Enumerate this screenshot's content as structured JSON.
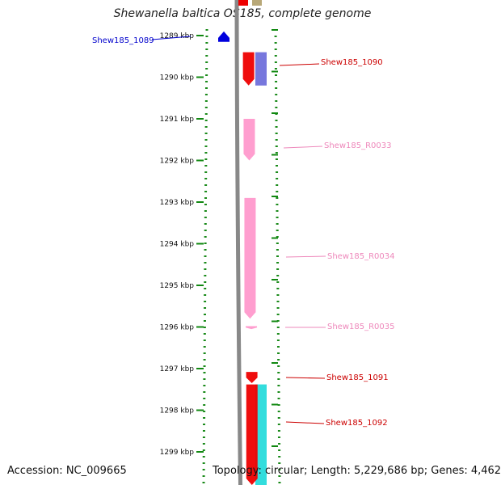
{
  "title": "Shewanella baltica OS185, complete genome",
  "footer": {
    "accession": "Accession: NC_009665",
    "stats": "Topology: circular; Length: 5,229,686 bp; Genes: 4,462"
  },
  "scale": {
    "unit": "kbp",
    "ticks": [
      {
        "kbp": 1289,
        "label": "1289 kbp"
      },
      {
        "kbp": 1290,
        "label": "1290 kbp"
      },
      {
        "kbp": 1291,
        "label": "1291 kbp"
      },
      {
        "kbp": 1292,
        "label": "1292 kbp"
      },
      {
        "kbp": 1293,
        "label": "1293 kbp"
      },
      {
        "kbp": 1294,
        "label": "1294 kbp"
      },
      {
        "kbp": 1295,
        "label": "1295 kbp"
      },
      {
        "kbp": 1296,
        "label": "1296 kbp"
      },
      {
        "kbp": 1297,
        "label": "1297 kbp"
      },
      {
        "kbp": 1298,
        "label": "1298 kbp"
      },
      {
        "kbp": 1299,
        "label": "1299 kbp"
      }
    ]
  },
  "genes": [
    {
      "name": "Shew185_1089",
      "color": "#0000dd",
      "label_color": "#0000cc",
      "strand": "reverse",
      "start_kbp": 1288.9,
      "end_kbp": 1289.15,
      "track": "outer"
    },
    {
      "name": "Shew185_1090",
      "color": "#ee0000",
      "label_color": "#cc0000",
      "strand": "forward",
      "start_kbp": 1289.4,
      "end_kbp": 1290.2,
      "track": "inner"
    },
    {
      "name": "Shew185_R0033",
      "color": "#ff99cc",
      "label_color": "#ee88bb",
      "strand": "forward",
      "start_kbp": 1291.0,
      "end_kbp": 1292.0,
      "track": "inner"
    },
    {
      "name": "Shew185_R0034",
      "color": "#ff99cc",
      "label_color": "#ee88bb",
      "strand": "forward",
      "start_kbp": 1292.9,
      "end_kbp": 1295.8,
      "track": "inner"
    },
    {
      "name": "Shew185_R0035",
      "color": "#ff99cc",
      "label_color": "#ee88bb",
      "strand": "forward",
      "start_kbp": 1295.98,
      "end_kbp": 1296.05,
      "track": "inner"
    },
    {
      "name": "Shew185_1091",
      "color": "#ee0000",
      "label_color": "#cc0000",
      "strand": "forward",
      "start_kbp": 1297.08,
      "end_kbp": 1297.35,
      "track": "inner"
    },
    {
      "name": "Shew185_1092",
      "color": "#ee0000",
      "label_color": "#cc0000",
      "strand": "forward",
      "start_kbp": 1297.38,
      "end_kbp": 1299.8,
      "track": "inner"
    }
  ],
  "neighbors": [
    {
      "color": "#7777dd",
      "start_kbp": 1289.4,
      "end_kbp": 1290.2
    },
    {
      "color": "#33dddd",
      "start_kbp": 1297.38,
      "end_kbp": 1299.8
    }
  ]
}
